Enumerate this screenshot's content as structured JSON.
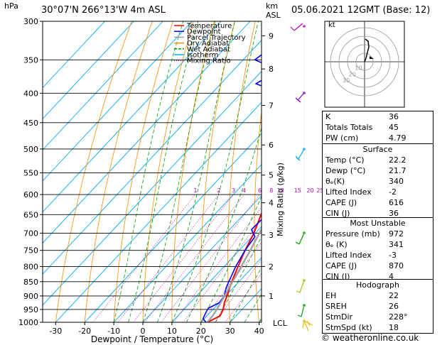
{
  "header": {
    "hpa_label": "hPa",
    "location": "30°07'N  266°13'W  4m  ASL",
    "km_label": "km",
    "asl_label": "ASL",
    "date": "05.06.2021  12GMT  (Base: 12)"
  },
  "legend": [
    {
      "label": "Temperature",
      "color": "#ff0000"
    },
    {
      "label": "Dewpoint",
      "color": "#0000ff"
    },
    {
      "label": "Parcel Trajectory",
      "color": "#a0a0a0"
    },
    {
      "label": "Dry Adiabat",
      "color": "#ff8c00"
    },
    {
      "label": "Wet Adiabat",
      "color": "#00a000"
    },
    {
      "label": "Isotherm",
      "color": "#00aaff"
    },
    {
      "label": "Mixing Ratio",
      "color": "#c000c0"
    }
  ],
  "axes": {
    "xlabel": "Dewpoint / Temperature (°C)",
    "ylabel_right": "Mixing Ratio (g/kg)",
    "x_ticks": [
      "-30",
      "-20",
      "-10",
      "0",
      "10",
      "20",
      "30",
      "40"
    ],
    "x_values": [
      -30,
      -20,
      -10,
      0,
      10,
      20,
      30,
      40
    ],
    "p_ticks": [
      "300",
      "350",
      "400",
      "450",
      "500",
      "550",
      "600",
      "650",
      "700",
      "750",
      "800",
      "850",
      "900",
      "950",
      "1000"
    ],
    "p_values": [
      300,
      350,
      400,
      450,
      500,
      550,
      600,
      650,
      700,
      750,
      800,
      850,
      900,
      950,
      1000
    ],
    "km_ticks": [
      {
        "label": "9",
        "p": 318
      },
      {
        "label": "8",
        "p": 363
      },
      {
        "label": "7",
        "p": 420
      },
      {
        "label": "6",
        "p": 492
      },
      {
        "label": "5",
        "p": 555
      },
      {
        "label": "4",
        "p": 620
      },
      {
        "label": "3",
        "p": 705
      },
      {
        "label": "2",
        "p": 800
      },
      {
        "label": "1",
        "p": 900
      }
    ],
    "lcl_label": "LCL",
    "mixing_ratio_labels": [
      "1",
      "2",
      "3",
      "4",
      "6",
      "8",
      "10",
      "15",
      "20",
      "25"
    ]
  },
  "chart_data": {
    "type": "line",
    "title": "30°07'N  266°13'W  4m  ASL",
    "xlabel": "Dewpoint / Temperature (°C)",
    "ylabel": "hPa",
    "xlim": [
      -35,
      40
    ],
    "ylim": [
      1000,
      300
    ],
    "series": [
      {
        "name": "Temperature",
        "color": "#ff0000",
        "p": [
          1000,
          975,
          950,
          925,
          900,
          850,
          800,
          750,
          700,
          650,
          600,
          550,
          500,
          450,
          420,
          400,
          350,
          300
        ],
        "t": [
          22.2,
          24.5,
          23.5,
          21.8,
          20.5,
          17.5,
          14.8,
          12.0,
          9.5,
          6.0,
          2.0,
          -2.2,
          -7.0,
          -13.0,
          -16.0,
          -19.0,
          -26.5,
          -36.0
        ]
      },
      {
        "name": "Dewpoint",
        "color": "#0000ff",
        "p": [
          1000,
          985,
          960,
          945,
          925,
          900,
          870,
          850,
          800,
          750,
          710,
          690,
          640,
          625,
          600,
          550,
          505,
          495,
          460,
          430,
          425,
          415,
          410,
          400,
          395,
          385,
          365,
          350,
          340,
          325,
          310,
          300
        ],
        "t": [
          21.7,
          19.5,
          18.5,
          18.0,
          20.0,
          19.5,
          17.5,
          16.5,
          14.0,
          12.0,
          11.0,
          7.5,
          8.0,
          6.0,
          7.5,
          4.0,
          0.5,
          -3.0,
          -7.0,
          -10.5,
          -19.0,
          -23.0,
          -22.0,
          -30.0,
          -30.0,
          -38.0,
          -34.0,
          -46.0,
          -45.0,
          -30.0,
          -33.0,
          -45.0
        ]
      },
      {
        "name": "Parcel Trajectory",
        "color": "#a0a0a0",
        "p": [
          1000,
          972,
          950,
          900,
          850,
          800,
          750,
          700,
          650,
          600,
          550,
          500,
          450,
          400,
          350,
          300
        ],
        "t": [
          22.2,
          21.9,
          21.3,
          19.6,
          17.8,
          15.9,
          13.8,
          11.4,
          8.9,
          6.0,
          2.8,
          -1.0,
          -5.6,
          -11.3,
          -18.8,
          -28.5
        ]
      }
    ]
  },
  "hodograph": {
    "label": "kt",
    "ring_labels": [
      "10",
      "20",
      "30"
    ]
  },
  "indices": [
    {
      "label": "K",
      "value": "36"
    },
    {
      "label": "Totals Totals",
      "value": "45"
    },
    {
      "label": "PW (cm)",
      "value": "4.79"
    }
  ],
  "surface": {
    "title": "Surface",
    "rows": [
      {
        "label": "Temp (°C)",
        "value": "22.2"
      },
      {
        "label": "Dewp (°C)",
        "value": "21.7"
      },
      {
        "label": "θₑ(K)",
        "value": "340"
      },
      {
        "label": "Lifted Index",
        "value": "-2"
      },
      {
        "label": "CAPE (J)",
        "value": "616"
      },
      {
        "label": "CIN (J)",
        "value": "36"
      }
    ]
  },
  "most_unstable": {
    "title": "Most Unstable",
    "rows": [
      {
        "label": "Pressure (mb)",
        "value": "972"
      },
      {
        "label": "θₑ (K)",
        "value": "341"
      },
      {
        "label": "Lifted Index",
        "value": "-3"
      },
      {
        "label": "CAPE (J)",
        "value": "870"
      },
      {
        "label": "CIN (J)",
        "value": "4"
      }
    ]
  },
  "hodo_table": {
    "title": "Hodograph",
    "rows": [
      {
        "label": "EH",
        "value": "22"
      },
      {
        "label": "SREH",
        "value": "26"
      },
      {
        "label": "StmDir",
        "value": "228°"
      },
      {
        "label": "StmSpd (kt)",
        "value": "18"
      }
    ]
  },
  "copyright": "© weatheronline.co.uk"
}
